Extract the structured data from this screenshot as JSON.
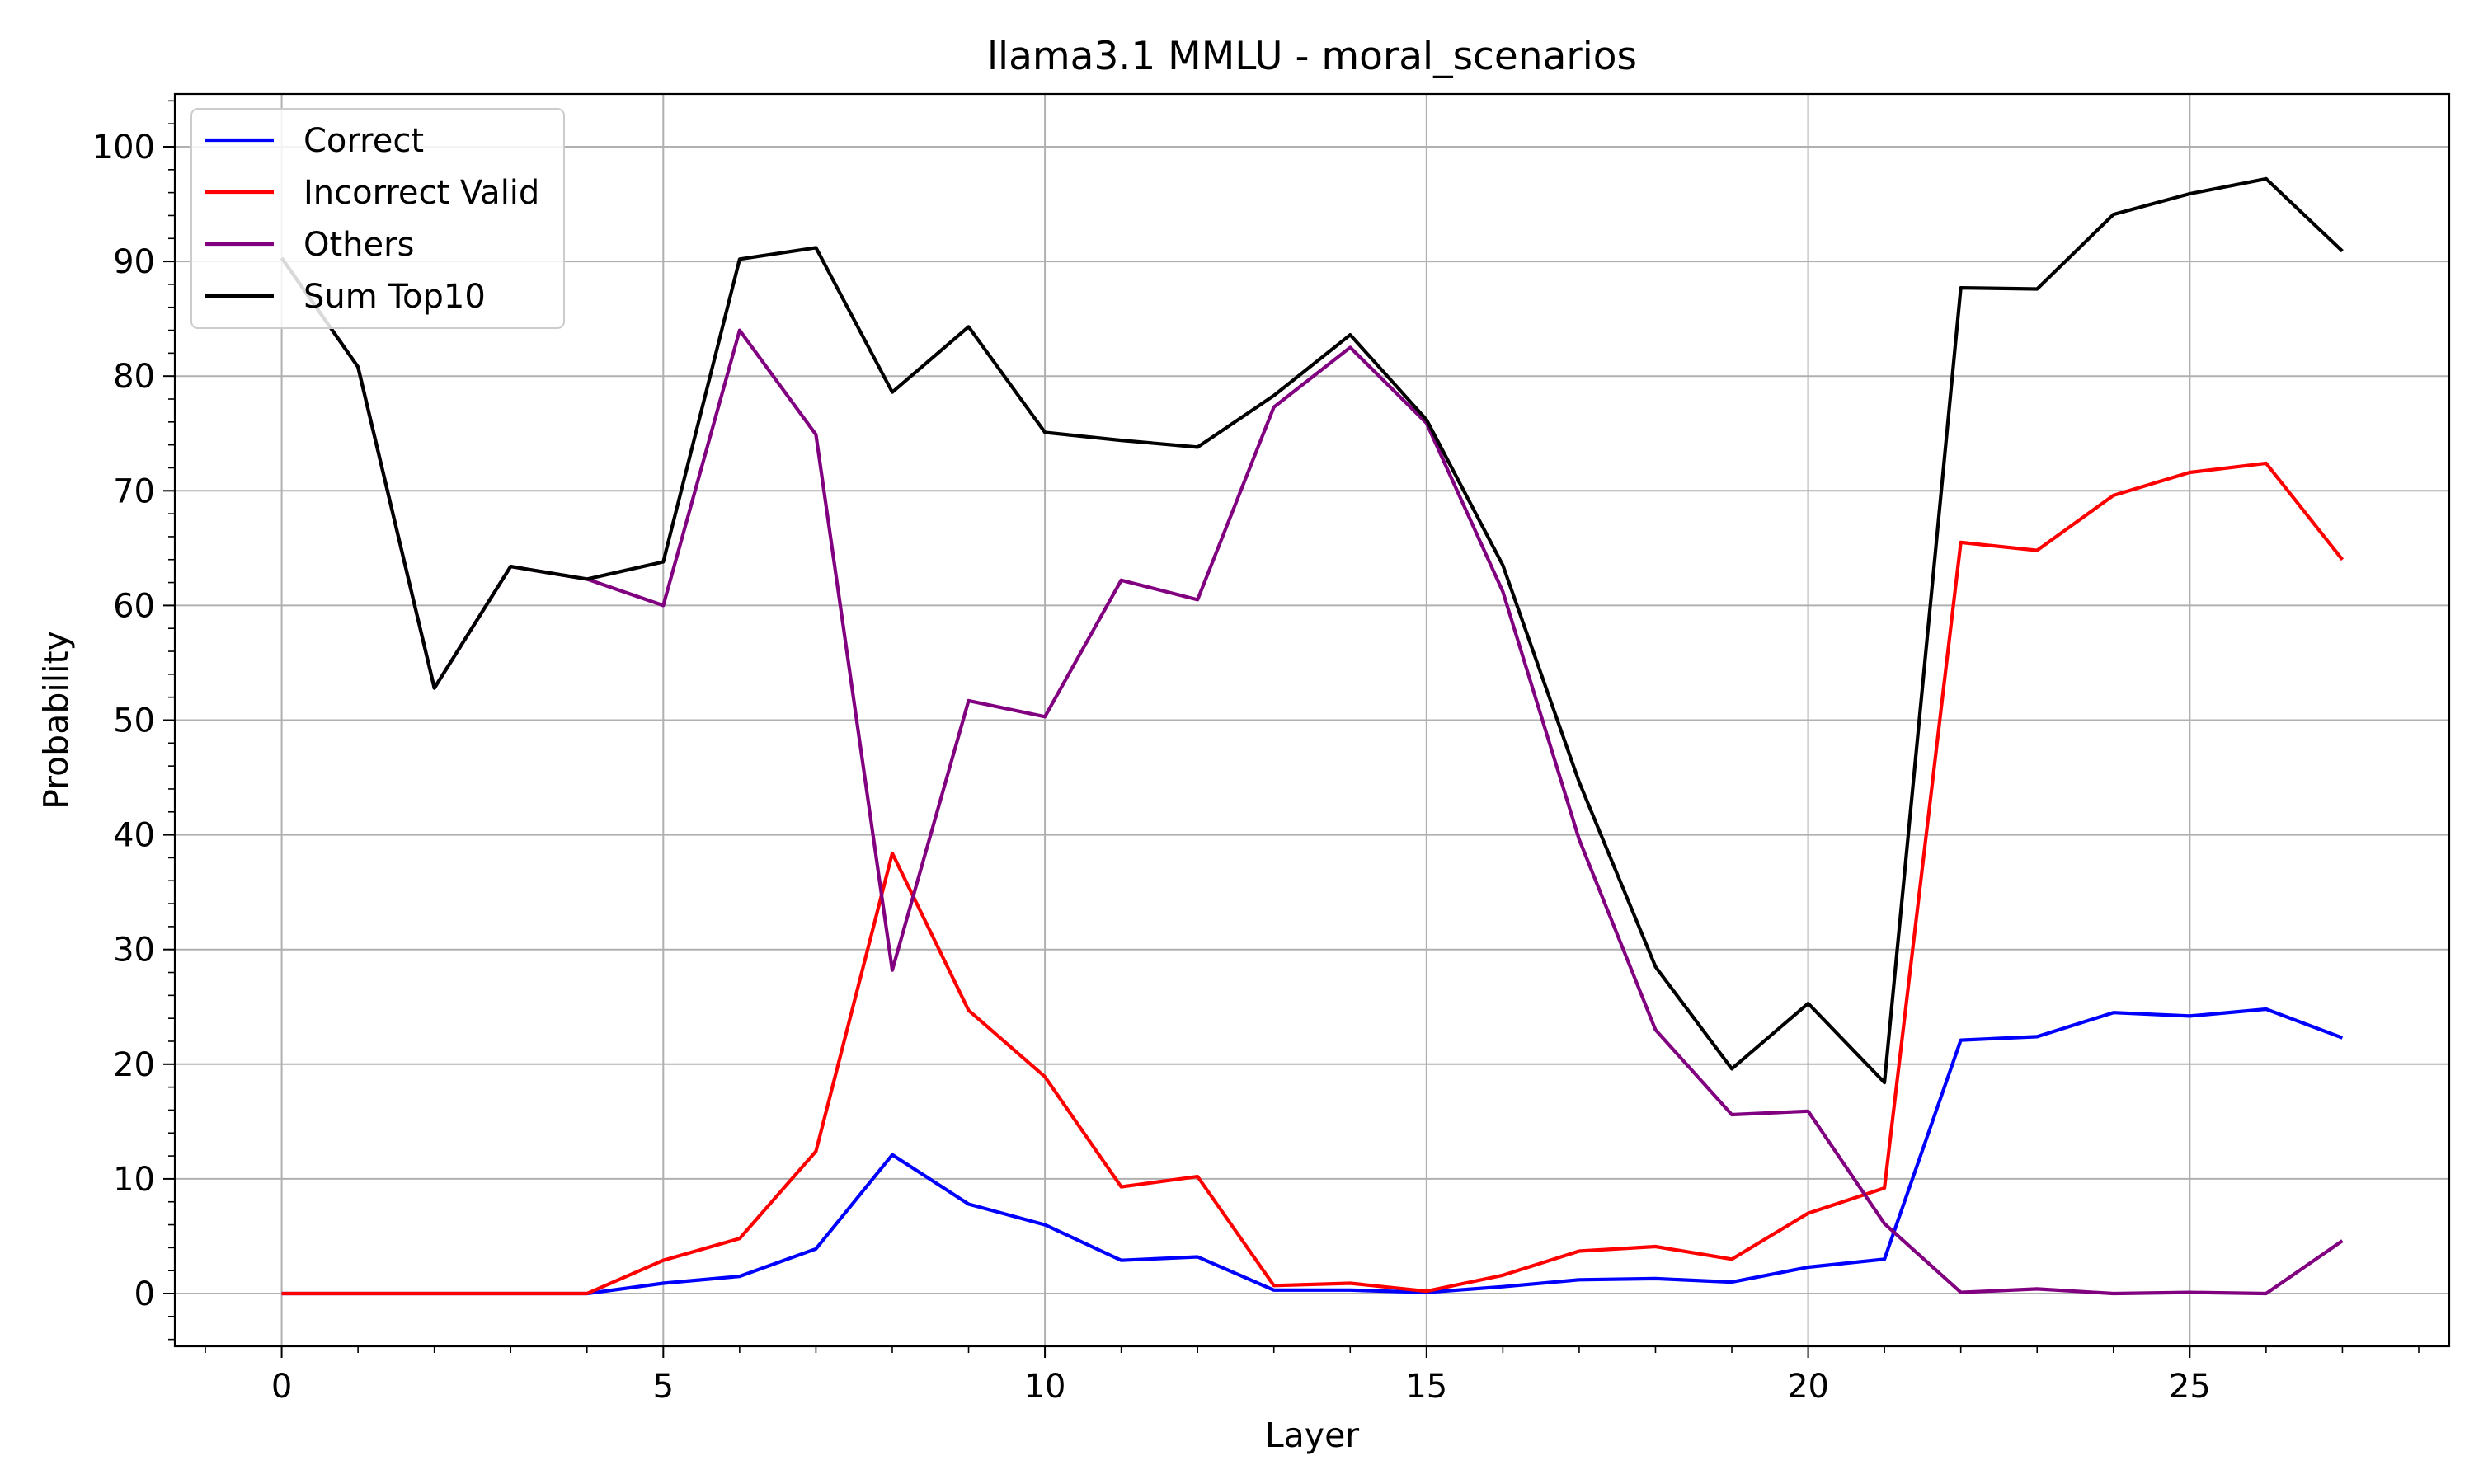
{
  "chart_data": {
    "type": "line",
    "title": "llama3.1 MMLU - moral_scenarios",
    "xlabel": "Layer",
    "ylabel": "Probability",
    "xlim": [
      -1.4,
      28.4
    ],
    "ylim": [
      -4.6,
      104.6
    ],
    "xticks": [
      0,
      5,
      10,
      15,
      20,
      25
    ],
    "yticks": [
      0,
      10,
      20,
      30,
      40,
      50,
      60,
      70,
      80,
      90,
      100
    ],
    "x_minor_step": 1,
    "y_minor_step": 2,
    "grid": true,
    "legend_position": "top-left",
    "x": [
      0,
      1,
      2,
      3,
      4,
      5,
      6,
      7,
      8,
      9,
      10,
      11,
      12,
      13,
      14,
      15,
      16,
      17,
      18,
      19,
      20,
      21,
      22,
      23,
      24,
      25,
      26,
      27
    ],
    "series": [
      {
        "name": "Correct",
        "color": "#0000ff",
        "values": [
          0,
          0,
          0,
          0,
          0,
          0.9,
          1.5,
          3.9,
          12.1,
          7.8,
          6.0,
          2.9,
          3.2,
          0.3,
          0.3,
          0.1,
          0.6,
          1.2,
          1.3,
          1.0,
          2.3,
          3.0,
          22.1,
          22.4,
          24.5,
          24.2,
          24.8,
          22.3
        ]
      },
      {
        "name": "Incorrect Valid",
        "color": "#ff0000",
        "values": [
          0,
          0,
          0,
          0,
          0,
          2.9,
          4.8,
          12.4,
          38.4,
          24.7,
          18.9,
          9.3,
          10.2,
          0.7,
          0.9,
          0.2,
          1.6,
          3.7,
          4.1,
          3.0,
          7.0,
          9.2,
          65.5,
          64.8,
          69.6,
          71.6,
          72.4,
          64.0
        ]
      },
      {
        "name": "Others",
        "color": "#800080",
        "values": [
          90.3,
          80.8,
          52.8,
          63.4,
          62.3,
          60.0,
          84.0,
          74.9,
          28.2,
          51.7,
          50.3,
          62.2,
          60.5,
          77.3,
          82.5,
          75.9,
          61.2,
          39.6,
          23.0,
          15.6,
          15.9,
          6.1,
          0.1,
          0.4,
          0.0,
          0.1,
          0.0,
          4.6
        ]
      },
      {
        "name": "Sum Top10",
        "color": "#000000",
        "values": [
          90.3,
          80.8,
          52.8,
          63.4,
          62.3,
          63.8,
          90.2,
          91.2,
          78.6,
          84.3,
          75.1,
          74.4,
          73.8,
          78.3,
          83.6,
          76.2,
          63.5,
          44.6,
          28.5,
          19.6,
          25.3,
          18.4,
          87.7,
          87.6,
          94.1,
          95.9,
          97.2,
          90.9
        ]
      }
    ]
  }
}
